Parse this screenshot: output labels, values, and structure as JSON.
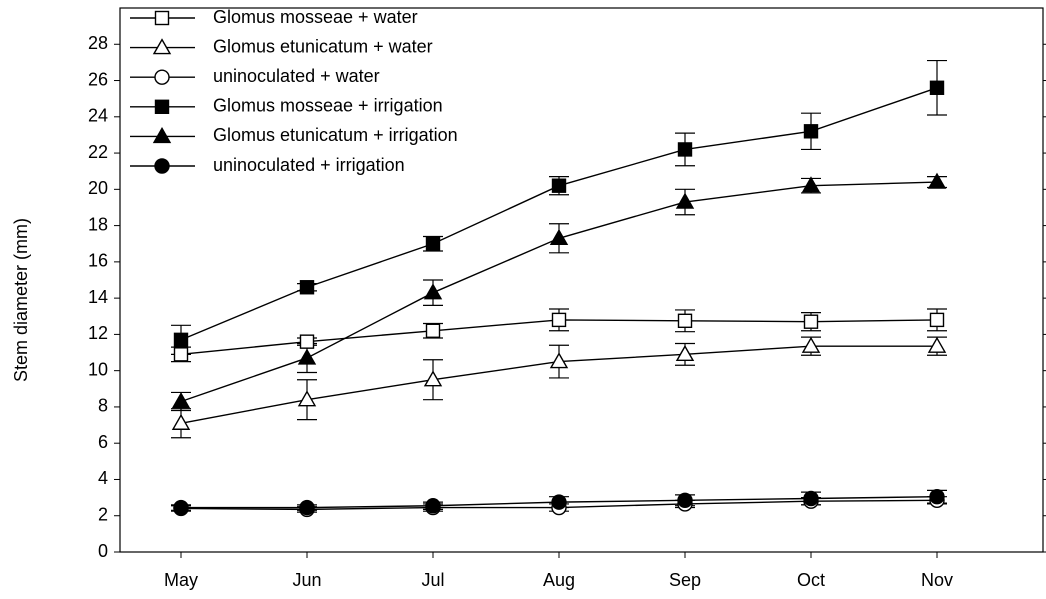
{
  "chart_data": {
    "type": "line",
    "ylabel": "Stem diameter (mm)",
    "categories": [
      "May",
      "Jun",
      "Jul",
      "Aug",
      "Sep",
      "Oct",
      "Nov"
    ],
    "ylim": [
      0,
      30
    ],
    "yticks": [
      0,
      2,
      4,
      6,
      8,
      10,
      12,
      14,
      16,
      18,
      20,
      22,
      24,
      26,
      28
    ],
    "legend": "upper left",
    "series": [
      {
        "name": "Glomus mosseae + water",
        "color": "#000000",
        "marker": "square",
        "filled": false,
        "values": [
          10.9,
          11.6,
          12.2,
          12.8,
          12.75,
          12.7,
          12.8
        ],
        "errors": [
          0.4,
          0.2,
          0.4,
          0.6,
          0.6,
          0.5,
          0.6
        ]
      },
      {
        "name": "Glomus etunicatum + water",
        "color": "#000000",
        "marker": "triangle",
        "filled": false,
        "values": [
          7.1,
          8.4,
          9.5,
          10.5,
          10.9,
          11.35,
          11.35
        ],
        "errors": [
          0.8,
          1.1,
          1.1,
          0.9,
          0.6,
          0.5,
          0.5
        ]
      },
      {
        "name": "uninoculated + water",
        "color": "#000000",
        "marker": "circle",
        "filled": false,
        "values": [
          2.4,
          2.35,
          2.45,
          2.45,
          2.65,
          2.8,
          2.85
        ],
        "errors": [
          0.15,
          0.15,
          0.2,
          0.2,
          0.2,
          0.2,
          0.2
        ]
      },
      {
        "name": "Glomus mosseae + irrigation",
        "color": "#000000",
        "marker": "square",
        "filled": true,
        "values": [
          11.7,
          14.6,
          17.0,
          20.2,
          22.2,
          23.2,
          25.6
        ],
        "errors": [
          0.8,
          0.2,
          0.4,
          0.5,
          0.9,
          1.0,
          1.5
        ]
      },
      {
        "name": "Glomus etunicatum + irrigation",
        "color": "#000000",
        "marker": "triangle",
        "filled": true,
        "values": [
          8.3,
          10.7,
          14.3,
          17.3,
          19.3,
          20.2,
          20.4
        ],
        "errors": [
          0.5,
          0.8,
          0.7,
          0.8,
          0.7,
          0.4,
          0.3
        ]
      },
      {
        "name": "uninoculated + irrigation",
        "color": "#000000",
        "marker": "circle",
        "filled": true,
        "values": [
          2.45,
          2.45,
          2.55,
          2.75,
          2.85,
          2.95,
          3.05
        ],
        "errors": [
          0.15,
          0.15,
          0.2,
          0.3,
          0.3,
          0.35,
          0.35
        ]
      }
    ]
  }
}
